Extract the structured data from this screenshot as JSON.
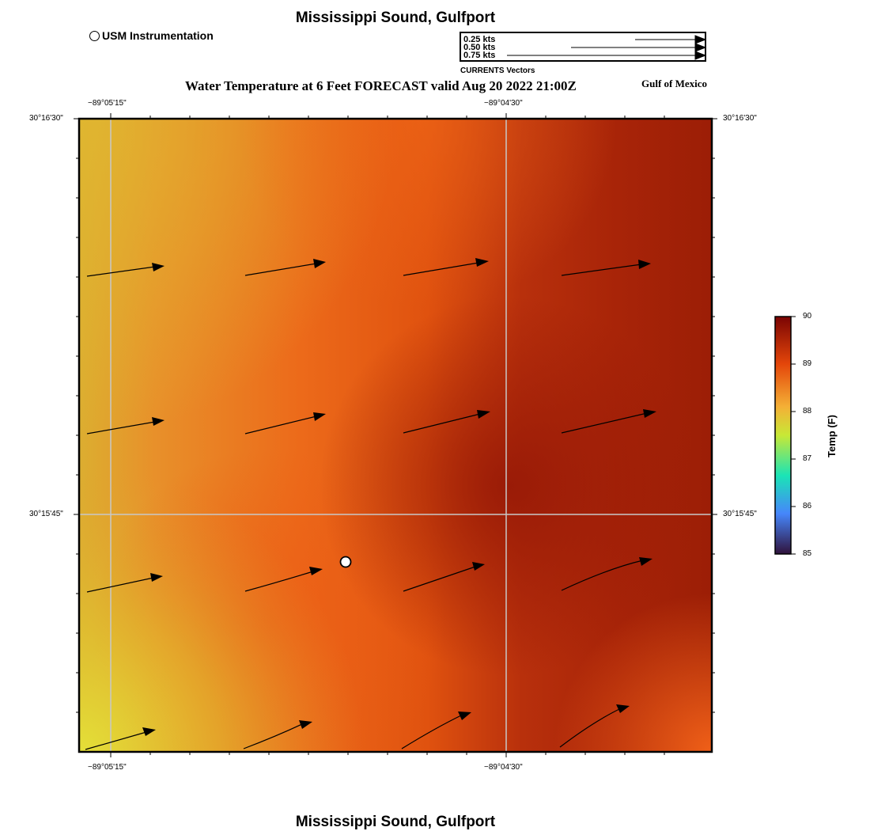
{
  "title": "Mississippi Sound, Gulfport",
  "bottom_title": "Mississippi Sound, Gulfport",
  "legend": {
    "instrument_label": "USM Instrumentation"
  },
  "vector_key": {
    "rows": [
      {
        "label": "0.25 kts",
        "speed_kts": 0.25
      },
      {
        "label": "0.50 kts",
        "speed_kts": 0.5
      },
      {
        "label": "0.75 kts",
        "speed_kts": 0.75
      }
    ],
    "caption": "CURRENTS Vectors"
  },
  "subtitle": "Water Temperature at 6 Feet FORECAST valid Aug 20 2022 21:00Z",
  "region_label": "Gulf of Mexico",
  "axes": {
    "x_ticks": [
      "−89°05'15\"",
      "−89°04'30\""
    ],
    "y_ticks": [
      "30°16'30\"",
      "30°15'45\""
    ]
  },
  "colorbar": {
    "title": "Temp (F)",
    "min": 85,
    "max": 90,
    "ticks": [
      "85",
      "86",
      "87",
      "88",
      "89",
      "90"
    ],
    "colors": [
      "#30123b",
      "#4686fb",
      "#1ae4b6",
      "#a4fc3c",
      "#f9ba38",
      "#e4460a",
      "#7a0403"
    ]
  },
  "field_colors": {
    "yellow": "#e0d030",
    "orange": "#e85a14",
    "red": "#9a1e08"
  }
}
